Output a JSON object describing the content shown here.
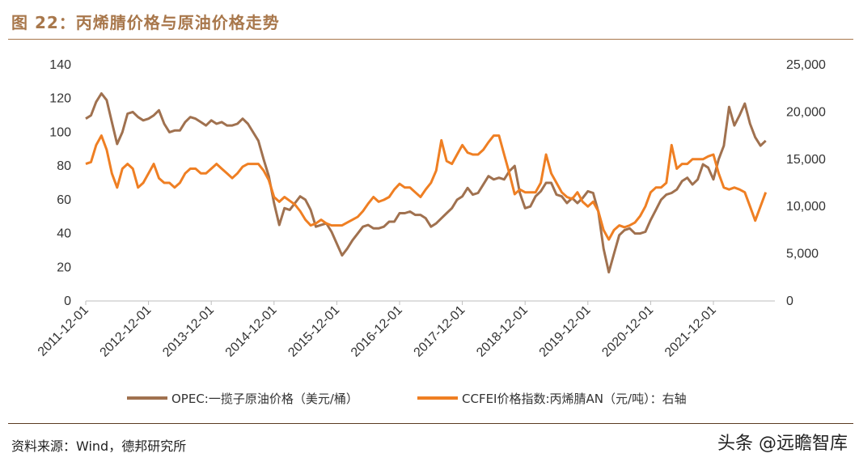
{
  "title": "图 22：丙烯腈价格与原油价格走势",
  "source": "资料来源：Wind，德邦研究所",
  "watermark": "头条 @远瞻智库",
  "colors": {
    "opec": "#a0714f",
    "ccfei": "#ef7f23",
    "title": "#a8774b"
  },
  "chart_data": {
    "type": "line",
    "x_tick_labels": [
      "2011-12-01",
      "2012-12-01",
      "2013-12-01",
      "2014-12-01",
      "2015-12-01",
      "2016-12-01",
      "2017-12-01",
      "2018-12-01",
      "2019-12-01",
      "2020-12-01",
      "2021-12-01"
    ],
    "ylim_left": [
      0,
      140
    ],
    "left_ticks": [
      "0",
      "20",
      "40",
      "60",
      "80",
      "100",
      "120",
      "140"
    ],
    "ylim_right": [
      0,
      25000
    ],
    "right_ticks": [
      "0",
      "5,000",
      "10,000",
      "15,000",
      "20,000",
      "25,000"
    ],
    "grid": false,
    "legend_position": "bottom",
    "series": [
      {
        "name": "OPEC:一揽子原油价格（美元/桶）",
        "axis": "left",
        "x": [
          "2011-12",
          "2012-01",
          "2012-02",
          "2012-03",
          "2012-04",
          "2012-05",
          "2012-06",
          "2012-07",
          "2012-08",
          "2012-09",
          "2012-10",
          "2012-11",
          "2012-12",
          "2013-01",
          "2013-02",
          "2013-03",
          "2013-04",
          "2013-05",
          "2013-06",
          "2013-07",
          "2013-08",
          "2013-09",
          "2013-10",
          "2013-11",
          "2013-12",
          "2014-01",
          "2014-02",
          "2014-03",
          "2014-04",
          "2014-05",
          "2014-06",
          "2014-07",
          "2014-08",
          "2014-09",
          "2014-10",
          "2014-11",
          "2014-12",
          "2015-01",
          "2015-02",
          "2015-03",
          "2015-04",
          "2015-05",
          "2015-06",
          "2015-07",
          "2015-08",
          "2015-09",
          "2015-10",
          "2015-11",
          "2015-12",
          "2016-01",
          "2016-02",
          "2016-03",
          "2016-04",
          "2016-05",
          "2016-06",
          "2016-07",
          "2016-08",
          "2016-09",
          "2016-10",
          "2016-11",
          "2016-12",
          "2017-01",
          "2017-02",
          "2017-03",
          "2017-04",
          "2017-05",
          "2017-06",
          "2017-07",
          "2017-08",
          "2017-09",
          "2017-10",
          "2017-11",
          "2017-12",
          "2018-01",
          "2018-02",
          "2018-03",
          "2018-04",
          "2018-05",
          "2018-06",
          "2018-07",
          "2018-08",
          "2018-09",
          "2018-10",
          "2018-11",
          "2018-12",
          "2019-01",
          "2019-02",
          "2019-03",
          "2019-04",
          "2019-05",
          "2019-06",
          "2019-07",
          "2019-08",
          "2019-09",
          "2019-10",
          "2019-11",
          "2019-12",
          "2020-01",
          "2020-02",
          "2020-03",
          "2020-04",
          "2020-05",
          "2020-06",
          "2020-07",
          "2020-08",
          "2020-09",
          "2020-10",
          "2020-11",
          "2020-12",
          "2021-01",
          "2021-02",
          "2021-03",
          "2021-04",
          "2021-05",
          "2021-06",
          "2021-07",
          "2021-08",
          "2021-09",
          "2021-10",
          "2021-11",
          "2021-12",
          "2022-01",
          "2022-02",
          "2022-03",
          "2022-04",
          "2022-05",
          "2022-06",
          "2022-07",
          "2022-08",
          "2022-09",
          "2022-10"
        ],
        "values": [
          108,
          110,
          118,
          123,
          119,
          106,
          93,
          100,
          111,
          112,
          109,
          107,
          108,
          110,
          113,
          105,
          100,
          101,
          101,
          106,
          109,
          108,
          106,
          104,
          107,
          105,
          106,
          104,
          104,
          105,
          108,
          105,
          100,
          95,
          84,
          74,
          58,
          45,
          55,
          54,
          58,
          62,
          60,
          54,
          44,
          45,
          46,
          41,
          34,
          27,
          31,
          36,
          40,
          44,
          45,
          43,
          43,
          44,
          47,
          47,
          52,
          52,
          53,
          51,
          51,
          49,
          44,
          46,
          49,
          52,
          55,
          60,
          62,
          67,
          63,
          64,
          69,
          74,
          72,
          73,
          72,
          77,
          80,
          64,
          55,
          56,
          62,
          65,
          70,
          70,
          63,
          62,
          58,
          61,
          58,
          61,
          65,
          64,
          53,
          31,
          17,
          28,
          39,
          42,
          43,
          40,
          40,
          41,
          48,
          54,
          60,
          63,
          64,
          66,
          71,
          73,
          69,
          72,
          81,
          79,
          72,
          84,
          92,
          115,
          104,
          110,
          117,
          105,
          97,
          92,
          95
        ]
      },
      {
        "name": "CCFEI价格指数:丙烯腈AN（元/吨）：右轴",
        "axis": "right",
        "x": [
          "2011-12",
          "2012-01",
          "2012-02",
          "2012-03",
          "2012-04",
          "2012-05",
          "2012-06",
          "2012-07",
          "2012-08",
          "2012-09",
          "2012-10",
          "2012-11",
          "2012-12",
          "2013-01",
          "2013-02",
          "2013-03",
          "2013-04",
          "2013-05",
          "2013-06",
          "2013-07",
          "2013-08",
          "2013-09",
          "2013-10",
          "2013-11",
          "2013-12",
          "2014-01",
          "2014-02",
          "2014-03",
          "2014-04",
          "2014-05",
          "2014-06",
          "2014-07",
          "2014-08",
          "2014-09",
          "2014-10",
          "2014-11",
          "2014-12",
          "2015-01",
          "2015-02",
          "2015-03",
          "2015-04",
          "2015-05",
          "2015-06",
          "2015-07",
          "2015-08",
          "2015-09",
          "2015-10",
          "2015-11",
          "2015-12",
          "2016-01",
          "2016-02",
          "2016-03",
          "2016-04",
          "2016-05",
          "2016-06",
          "2016-07",
          "2016-08",
          "2016-09",
          "2016-10",
          "2016-11",
          "2016-12",
          "2017-01",
          "2017-02",
          "2017-03",
          "2017-04",
          "2017-05",
          "2017-06",
          "2017-07",
          "2017-08",
          "2017-09",
          "2017-10",
          "2017-11",
          "2017-12",
          "2018-01",
          "2018-02",
          "2018-03",
          "2018-04",
          "2018-05",
          "2018-06",
          "2018-07",
          "2018-08",
          "2018-09",
          "2018-10",
          "2018-11",
          "2018-12",
          "2019-01",
          "2019-02",
          "2019-03",
          "2019-04",
          "2019-05",
          "2019-06",
          "2019-07",
          "2019-08",
          "2019-09",
          "2019-10",
          "2019-11",
          "2019-12",
          "2020-01",
          "2020-02",
          "2020-03",
          "2020-04",
          "2020-05",
          "2020-06",
          "2020-07",
          "2020-08",
          "2020-09",
          "2020-10",
          "2020-11",
          "2020-12",
          "2021-01",
          "2021-02",
          "2021-03",
          "2021-04",
          "2021-05",
          "2021-06",
          "2021-07",
          "2021-08",
          "2021-09",
          "2021-10",
          "2021-11",
          "2021-12",
          "2022-01",
          "2022-02",
          "2022-03",
          "2022-04",
          "2022-05",
          "2022-06",
          "2022-07",
          "2022-08",
          "2022-09",
          "2022-10"
        ],
        "values": [
          14500,
          14700,
          16500,
          17500,
          16000,
          13500,
          12000,
          14000,
          14500,
          14000,
          12000,
          12500,
          13500,
          14500,
          13000,
          12500,
          12500,
          12000,
          12500,
          13500,
          14000,
          14000,
          13500,
          13500,
          14000,
          14500,
          14000,
          13500,
          13000,
          13500,
          14200,
          14500,
          14500,
          14500,
          13800,
          12800,
          11000,
          10500,
          11000,
          10600,
          10200,
          9500,
          8600,
          8000,
          8200,
          8600,
          8200,
          8000,
          8000,
          8000,
          8300,
          8600,
          8900,
          9500,
          10300,
          11000,
          10500,
          10700,
          11000,
          11800,
          12400,
          12000,
          12000,
          11500,
          11000,
          11800,
          12500,
          13800,
          17000,
          14800,
          14500,
          15500,
          16500,
          15700,
          15500,
          15500,
          16000,
          16800,
          17500,
          17500,
          15500,
          13500,
          11300,
          11800,
          11500,
          11500,
          11500,
          12500,
          15500,
          13500,
          12500,
          11500,
          11000,
          10800,
          11500,
          10500,
          10000,
          10500,
          9500,
          7500,
          6500,
          7500,
          8000,
          7800,
          8000,
          8300,
          9000,
          10000,
          11500,
          12000,
          12000,
          12500,
          16500,
          14000,
          14500,
          14500,
          15000,
          15000,
          15000,
          15300,
          15500,
          13500,
          12000,
          11800,
          12000,
          11800,
          11500,
          10000,
          8500,
          10000,
          11500
        ]
      }
    ]
  }
}
